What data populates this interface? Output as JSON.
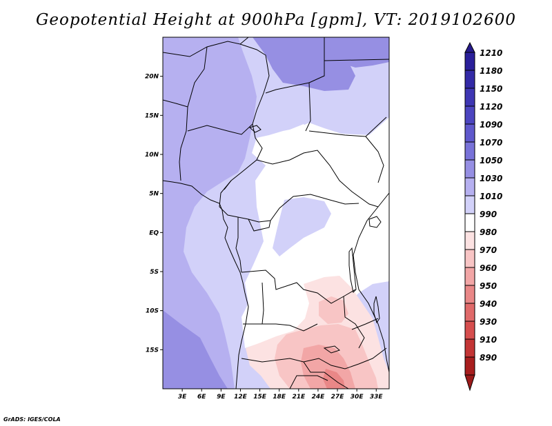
{
  "title": "Geopotential Height at 900hPa [gpm], VT: 2019102600",
  "credit": "GrADS: IGES/COLA",
  "map": {
    "variable": "Geopotential Height",
    "level": "900hPa",
    "units": "gpm",
    "valid_time": "2019102600",
    "lon_range": [
      0,
      35
    ],
    "lat_range": [
      -20,
      25
    ],
    "lat_ticks": [
      {
        "value": 20,
        "label": "20N"
      },
      {
        "value": 15,
        "label": "15N"
      },
      {
        "value": 10,
        "label": "10N"
      },
      {
        "value": 5,
        "label": "5N"
      },
      {
        "value": 0,
        "label": "EQ"
      },
      {
        "value": -5,
        "label": "5S"
      },
      {
        "value": -10,
        "label": "10S"
      },
      {
        "value": -15,
        "label": "15S"
      }
    ],
    "lon_ticks": [
      {
        "value": 3,
        "label": "3E"
      },
      {
        "value": 6,
        "label": "6E"
      },
      {
        "value": 9,
        "label": "9E"
      },
      {
        "value": 12,
        "label": "12E"
      },
      {
        "value": 15,
        "label": "15E"
      },
      {
        "value": 18,
        "label": "18E"
      },
      {
        "value": 21,
        "label": "21E"
      },
      {
        "value": 24,
        "label": "24E"
      },
      {
        "value": 27,
        "label": "27E"
      },
      {
        "value": 30,
        "label": "30E"
      },
      {
        "value": 33,
        "label": "33E"
      }
    ]
  },
  "colorbar": {
    "levels": [
      {
        "label": "1210",
        "color": "#2a1f9a"
      },
      {
        "label": "1180",
        "color": "#332aa6"
      },
      {
        "label": "1150",
        "color": "#3e36b3"
      },
      {
        "label": "1120",
        "color": "#4c45c0"
      },
      {
        "label": "1090",
        "color": "#5f58cc"
      },
      {
        "label": "1070",
        "color": "#7872d8"
      },
      {
        "label": "1050",
        "color": "#968fe3"
      },
      {
        "label": "1030",
        "color": "#b6b0f0"
      },
      {
        "label": "1010",
        "color": "#d2d1f9"
      },
      {
        "label": "990",
        "color": "#ffffff"
      },
      {
        "label": "980",
        "color": "#fce2e2"
      },
      {
        "label": "970",
        "color": "#f8c5c5"
      },
      {
        "label": "960",
        "color": "#f2a6a6"
      },
      {
        "label": "950",
        "color": "#e98787"
      },
      {
        "label": "940",
        "color": "#e06a6a"
      },
      {
        "label": "930",
        "color": "#d64e4e"
      },
      {
        "label": "910",
        "color": "#c33535"
      },
      {
        "label": "890",
        "color": "#a81e1e"
      }
    ],
    "top_color": "#261a8c",
    "bottom_color": "#9c1a1a"
  }
}
